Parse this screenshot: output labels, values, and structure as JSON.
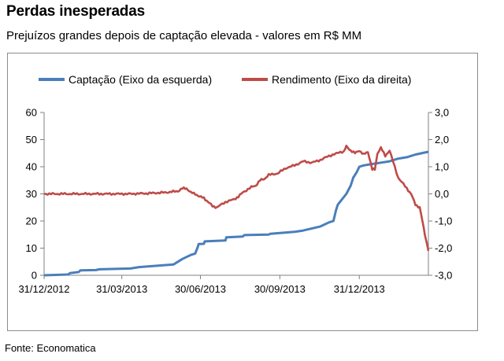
{
  "header": {
    "title": "Perdas inesperadas",
    "subtitle": "Prejuízos grandes depois de captação elevada - valores em R$ MM"
  },
  "footer": {
    "source": "Fonte: Economatica"
  },
  "colors": {
    "captacao": "#4a7ebb",
    "rendimento": "#be4b48",
    "axis": "#808080",
    "frame": "#8c8c8c"
  },
  "chart_data": {
    "type": "line",
    "title": "Perdas inesperadas",
    "legend_position": "top",
    "grid": false,
    "x_tick_labels": [
      "31/12/2012",
      "31/03/2013",
      "30/06/2013",
      "30/09/2013",
      "31/12/2013"
    ],
    "x_range_days": [
      0,
      445
    ],
    "x_tick_days": [
      0,
      90,
      181,
      273,
      365
    ],
    "y_left": {
      "ylim": [
        0,
        60
      ],
      "ticks": [
        "0",
        "10",
        "20",
        "30",
        "40",
        "50",
        "60"
      ]
    },
    "y_right": {
      "ylim": [
        -3.0,
        3.0
      ],
      "ticks": [
        "-3,0",
        "-2,0",
        "-1,0",
        "0,0",
        "1,0",
        "2,0",
        "3,0"
      ]
    },
    "series": [
      {
        "name": "Captação (Eixo da esquerda)",
        "axis": "left",
        "x": [
          0,
          28,
          30,
          40,
          42,
          60,
          64,
          100,
          110,
          150,
          160,
          170,
          175,
          178,
          179,
          185,
          186,
          210,
          211,
          230,
          232,
          260,
          262,
          290,
          300,
          320,
          330,
          335,
          338,
          340,
          345,
          350,
          355,
          358,
          362,
          365,
          370,
          380,
          390,
          400,
          410,
          420,
          430,
          440,
          445
        ],
        "values": [
          0,
          0.3,
          0.8,
          1.2,
          1.8,
          1.9,
          2.2,
          2.5,
          3.0,
          4.0,
          6.0,
          7.5,
          8.0,
          10.5,
          11.5,
          11.6,
          12.5,
          12.8,
          14.0,
          14.3,
          14.8,
          15.0,
          15.3,
          16.0,
          16.5,
          18.0,
          19.5,
          20.0,
          24.0,
          26.0,
          28.0,
          30.0,
          33.0,
          36.0,
          38.0,
          40.0,
          40.5,
          41.0,
          41.5,
          42.0,
          43.0,
          43.5,
          44.5,
          45.2,
          45.5
        ]
      },
      {
        "name": "Rendimento (Eixo da direita)",
        "axis": "right",
        "x": [
          0,
          20,
          40,
          60,
          80,
          100,
          120,
          140,
          155,
          160,
          165,
          170,
          175,
          180,
          185,
          190,
          195,
          200,
          210,
          220,
          225,
          230,
          240,
          245,
          250,
          255,
          260,
          270,
          280,
          290,
          300,
          310,
          320,
          330,
          340,
          343,
          347,
          350,
          355,
          360,
          365,
          370,
          375,
          380,
          383,
          386,
          390,
          395,
          400,
          410,
          420,
          425,
          430,
          435,
          438,
          441,
          443,
          445
        ],
        "values": [
          0.0,
          0.0,
          0.0,
          0.0,
          0.0,
          0.0,
          0.02,
          0.05,
          0.1,
          0.2,
          0.2,
          0.05,
          0.0,
          -0.1,
          -0.15,
          -0.3,
          -0.45,
          -0.5,
          -0.3,
          -0.2,
          -0.1,
          0.05,
          0.25,
          0.3,
          0.5,
          0.55,
          0.7,
          0.75,
          0.95,
          1.05,
          1.2,
          1.15,
          1.25,
          1.4,
          1.5,
          1.55,
          1.55,
          1.75,
          1.6,
          1.5,
          1.6,
          1.45,
          1.55,
          0.9,
          0.9,
          1.5,
          1.7,
          1.4,
          1.6,
          0.6,
          0.2,
          0.0,
          -0.4,
          -0.5,
          -1.0,
          -1.5,
          -1.8,
          -2.1
        ]
      }
    ]
  }
}
